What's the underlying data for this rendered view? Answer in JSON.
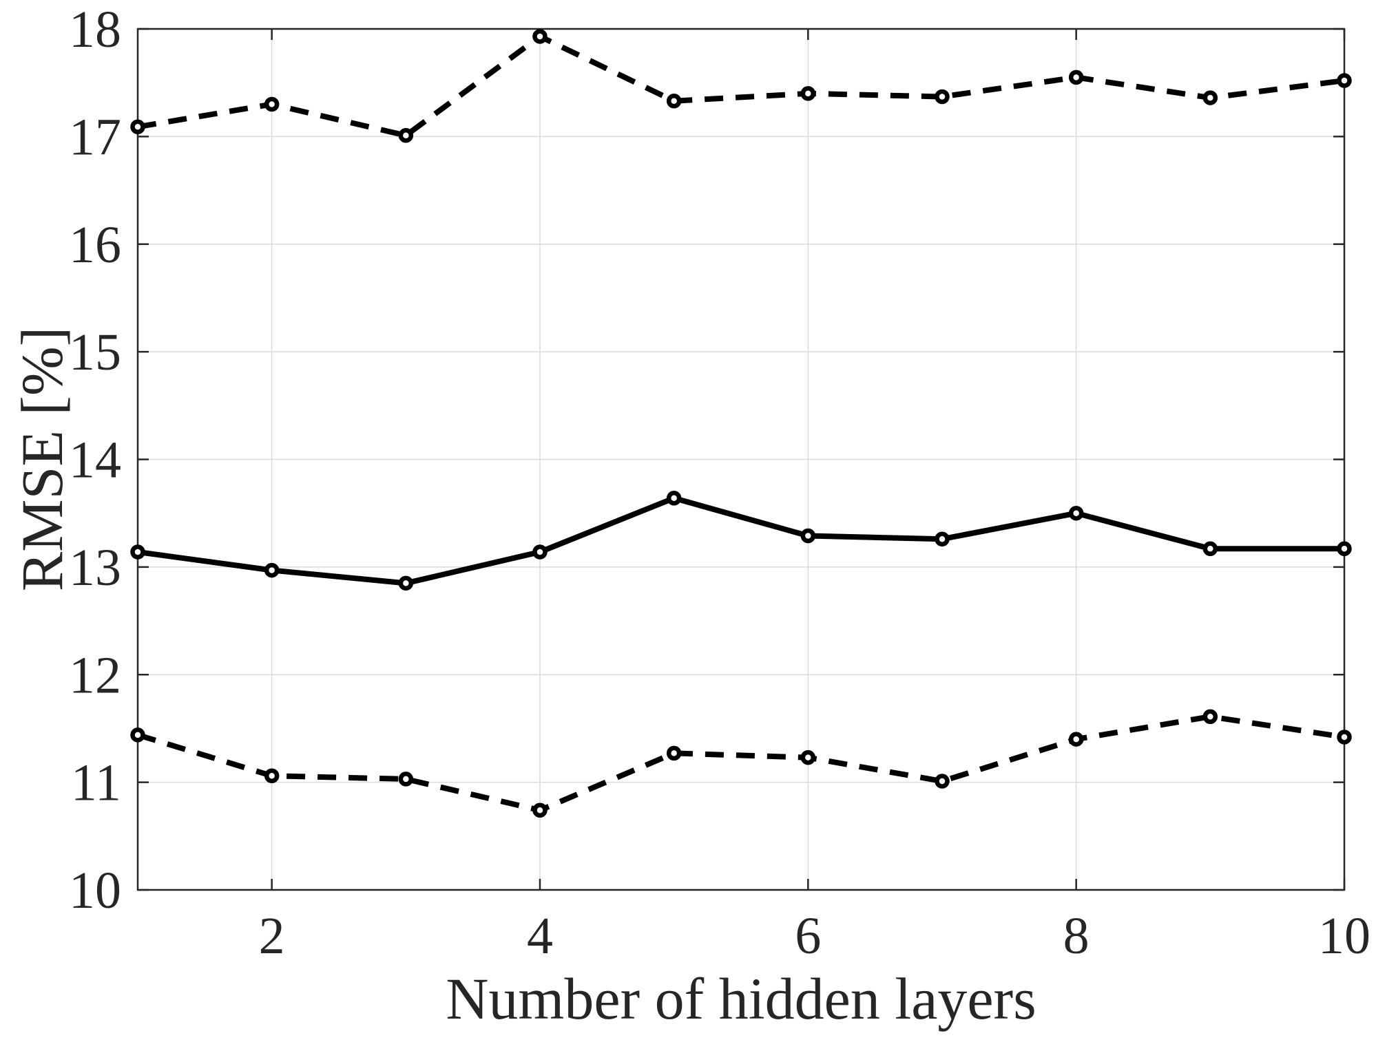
{
  "chart_data": {
    "type": "line",
    "title": "",
    "xlabel": "Number of hidden layers",
    "ylabel": "RMSE [%]",
    "x": [
      1,
      2,
      3,
      4,
      5,
      6,
      7,
      8,
      9,
      10
    ],
    "series": [
      {
        "name": "upper dashed line",
        "style": "dashed",
        "marker": "o",
        "values": [
          17.09,
          17.3,
          17.01,
          17.93,
          17.33,
          17.4,
          17.37,
          17.55,
          17.36,
          17.52
        ]
      },
      {
        "name": "solid line",
        "style": "solid",
        "marker": "o",
        "values": [
          13.14,
          12.97,
          12.85,
          13.14,
          13.64,
          13.29,
          13.26,
          13.5,
          13.17,
          13.17
        ]
      },
      {
        "name": "lower dashed line",
        "style": "dashed",
        "marker": "o",
        "values": [
          11.44,
          11.06,
          11.03,
          10.74,
          11.27,
          11.23,
          11.01,
          11.4,
          11.61,
          11.42
        ]
      }
    ],
    "xlim": [
      1,
      10
    ],
    "ylim": [
      10,
      18
    ],
    "xticks": [
      2,
      4,
      6,
      8,
      10
    ],
    "xtick_labels": [
      "2",
      "4",
      "6",
      "8",
      "10"
    ],
    "yticks": [
      10,
      11,
      12,
      13,
      14,
      15,
      16,
      17,
      18
    ],
    "ytick_labels": [
      "10",
      "11",
      "12",
      "13",
      "14",
      "15",
      "16",
      "17",
      "18"
    ],
    "grid": true,
    "legend": "none",
    "colors": {
      "line": "#000000",
      "axis": "#262626",
      "grid": "#dadada",
      "tick_text": "#262626",
      "background": "#ffffff"
    }
  }
}
